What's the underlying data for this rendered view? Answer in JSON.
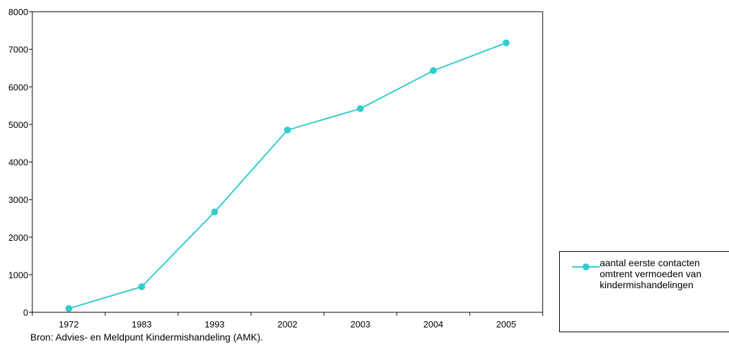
{
  "chart_data": {
    "type": "line",
    "categories": [
      "1972",
      "1983",
      "1993",
      "2002",
      "2003",
      "2004",
      "2005"
    ],
    "series": [
      {
        "name": "aantal eerste contacten omtrent vermoeden van kindermishandelingen",
        "values": [
          100,
          680,
          2670,
          4850,
          5420,
          6430,
          7170
        ]
      }
    ],
    "ylim": [
      0,
      8000
    ],
    "yticks": [
      "0",
      "1000",
      "2000",
      "3000",
      "4000",
      "5000",
      "6000",
      "7000",
      "8000"
    ],
    "grid": false,
    "legend_position": "right",
    "colors": {
      "series": "#33CCCC"
    },
    "source": "Bron: Advies- en Meldpunt Kindermishandeling (AMK)."
  },
  "legend": {
    "label": "aantal eerste contacten\nomtrent vermoeden van\nkindermishandelingen"
  }
}
